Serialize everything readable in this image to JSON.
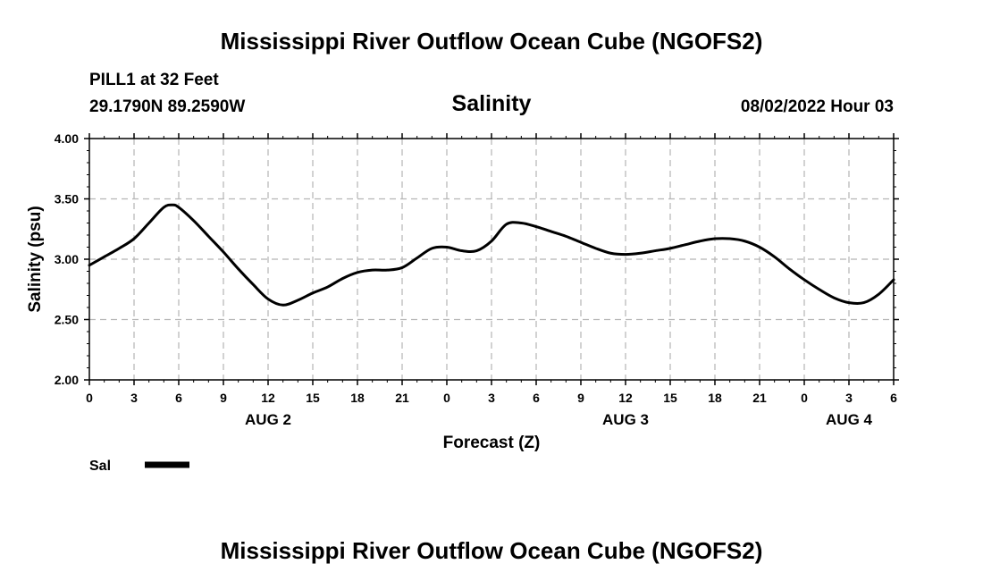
{
  "header": {
    "main_title": "Mississippi River Outflow Ocean Cube (NGOFS2)",
    "station_line": "PILL1 at 32 Feet",
    "coords_line": "29.1790N  89.2590W",
    "center_title": "Salinity",
    "datetime": "08/02/2022 Hour 03"
  },
  "legend": {
    "label": "Sal",
    "color": "#000000"
  },
  "footer": {
    "main_title": "Mississippi River Outflow Ocean Cube (NGOFS2)"
  },
  "chart_data": {
    "type": "line",
    "title": "Salinity",
    "xlabel": "Forecast (Z)",
    "ylabel": "Salinity (psu)",
    "xlim": [
      0,
      54
    ],
    "ylim": [
      2.0,
      4.0
    ],
    "grid": true,
    "x_ticks": [
      0,
      3,
      6,
      9,
      12,
      15,
      18,
      21,
      24,
      27,
      30,
      33,
      36,
      39,
      42,
      45,
      48,
      51,
      54
    ],
    "x_tick_labels": [
      "0",
      "3",
      "6",
      "9",
      "12",
      "15",
      "18",
      "21",
      "0",
      "3",
      "6",
      "9",
      "12",
      "15",
      "18",
      "21",
      "0",
      "3",
      "6"
    ],
    "y_ticks": [
      2.0,
      2.5,
      3.0,
      3.5,
      4.0
    ],
    "y_tick_labels": [
      "2.00",
      "2.50",
      "3.00",
      "3.50",
      "4.00"
    ],
    "date_labels": [
      {
        "x": 12,
        "label": "AUG 2"
      },
      {
        "x": 36,
        "label": "AUG 3"
      },
      {
        "x": 51,
        "label": "AUG 4"
      }
    ],
    "series": [
      {
        "name": "Sal",
        "x": [
          0,
          1,
          2,
          3,
          4,
          5,
          5.6,
          6,
          7,
          8,
          9,
          10,
          11,
          12,
          13,
          14,
          15,
          16,
          17,
          18,
          19,
          20,
          21,
          22,
          23,
          24,
          25,
          26,
          27,
          28,
          29,
          30,
          31,
          32,
          33,
          34,
          35,
          36,
          37,
          38,
          39,
          40,
          41,
          42,
          43,
          44,
          45,
          46,
          47,
          48,
          49,
          50,
          51,
          52,
          53,
          54
        ],
        "y": [
          2.95,
          3.02,
          3.09,
          3.17,
          3.3,
          3.43,
          3.45,
          3.43,
          3.32,
          3.19,
          3.06,
          2.92,
          2.79,
          2.67,
          2.62,
          2.66,
          2.72,
          2.77,
          2.84,
          2.89,
          2.91,
          2.91,
          2.93,
          3.01,
          3.09,
          3.1,
          3.07,
          3.07,
          3.15,
          3.29,
          3.3,
          3.27,
          3.23,
          3.19,
          3.14,
          3.09,
          3.05,
          3.04,
          3.05,
          3.07,
          3.09,
          3.12,
          3.15,
          3.17,
          3.17,
          3.15,
          3.1,
          3.02,
          2.92,
          2.83,
          2.75,
          2.68,
          2.64,
          2.64,
          2.71,
          2.83
        ]
      }
    ]
  }
}
